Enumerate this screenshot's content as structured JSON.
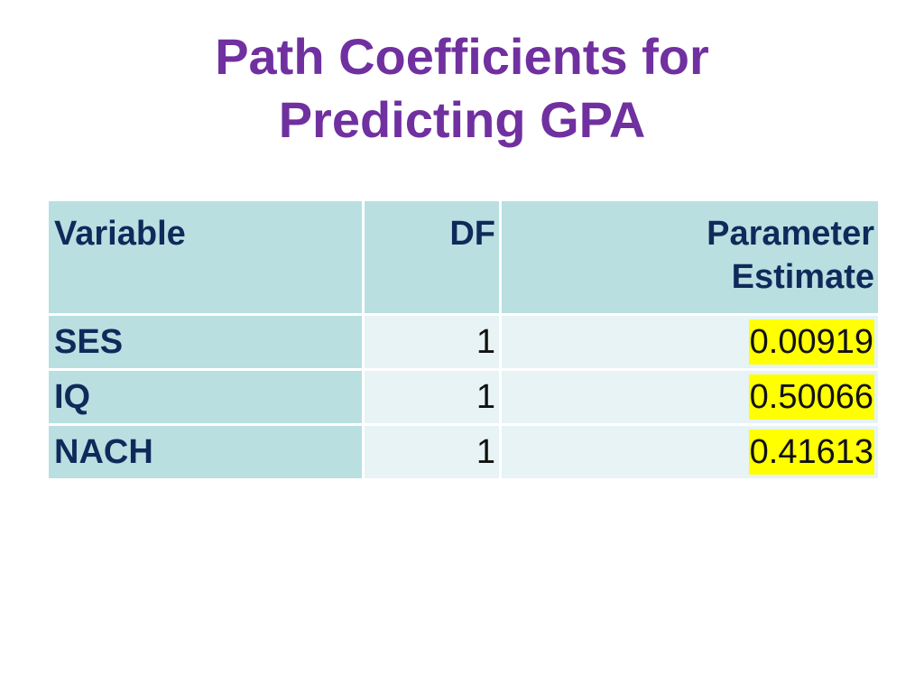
{
  "slide": {
    "title_line1": "Path Coefficients for",
    "title_line2": "Predicting GPA"
  },
  "table": {
    "headers": {
      "variable": "Variable",
      "df": "DF",
      "estimate_line1": "Parameter",
      "estimate_line2": "Estimate"
    },
    "rows": [
      {
        "variable": "SES",
        "df": "1",
        "estimate": "0.00919"
      },
      {
        "variable": "IQ",
        "df": "1",
        "estimate": "0.50066"
      },
      {
        "variable": "NACH",
        "df": "1",
        "estimate": "0.41613"
      }
    ]
  },
  "colors": {
    "title": "#7030a0",
    "header_fill": "#b9dfe1",
    "cell_fill": "#e7f3f4",
    "highlight": "#ffff00",
    "text_dark": "#0f2a5a"
  }
}
